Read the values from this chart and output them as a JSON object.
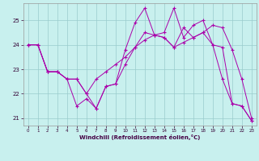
{
  "xlabel": "Windchill (Refroidissement éolien,°C)",
  "bg_color": "#c8f0ee",
  "line_color": "#aa00aa",
  "xlim": [
    -0.5,
    23.5
  ],
  "ylim": [
    20.7,
    25.7
  ],
  "yticks": [
    21,
    22,
    23,
    24,
    25
  ],
  "xticks": [
    0,
    1,
    2,
    3,
    4,
    5,
    6,
    7,
    8,
    9,
    10,
    11,
    12,
    13,
    14,
    15,
    16,
    17,
    18,
    19,
    20,
    21,
    22,
    23
  ],
  "series": [
    [
      24.0,
      24.0,
      22.9,
      22.9,
      22.6,
      21.5,
      21.8,
      21.4,
      22.3,
      22.4,
      23.8,
      24.9,
      25.5,
      24.4,
      24.5,
      25.5,
      24.3,
      24.8,
      25.0,
      24.0,
      23.9,
      21.6,
      21.5,
      20.9
    ],
    [
      24.0,
      24.0,
      22.9,
      22.9,
      22.6,
      22.6,
      22.0,
      21.4,
      22.3,
      22.4,
      23.2,
      23.9,
      24.5,
      24.4,
      24.3,
      23.9,
      24.7,
      24.3,
      24.5,
      24.0,
      22.6,
      21.6,
      21.5,
      20.9
    ],
    [
      24.0,
      24.0,
      22.9,
      22.9,
      22.6,
      22.6,
      22.0,
      22.6,
      22.9,
      23.2,
      23.5,
      23.9,
      24.2,
      24.4,
      24.3,
      23.9,
      24.1,
      24.3,
      24.5,
      24.8,
      24.7,
      23.8,
      22.6,
      21.0
    ]
  ]
}
